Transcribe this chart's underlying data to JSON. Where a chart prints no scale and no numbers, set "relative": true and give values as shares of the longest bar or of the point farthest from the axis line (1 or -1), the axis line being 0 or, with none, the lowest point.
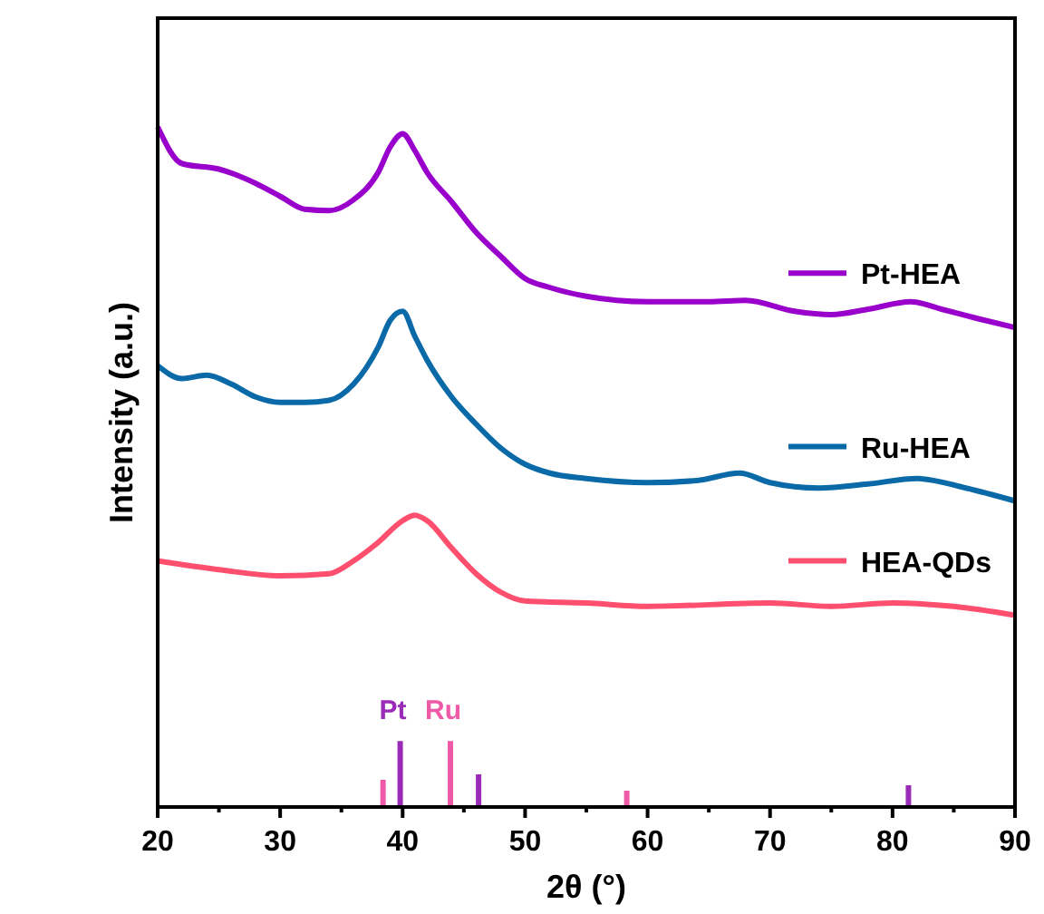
{
  "chart_data": {
    "type": "line",
    "relative": true,
    "xlabel": "2θ (°)",
    "ylabel": "Intensity (a.u.)",
    "xlim": [
      20,
      90
    ],
    "xticks": [
      20,
      {
        "value": 25,
        "label": null
      },
      30,
      {
        "value": 35,
        "label": null
      },
      40,
      {
        "value": 45,
        "label": null
      },
      50,
      {
        "value": 55,
        "label": null
      },
      60,
      {
        "value": 65,
        "label": null
      },
      70,
      {
        "value": 75,
        "label": null
      },
      80,
      {
        "value": 85,
        "label": null
      },
      90
    ],
    "grid": false,
    "legend": "right",
    "marker": "none",
    "line_style": "solid",
    "series": [
      {
        "name": "Pt-HEA",
        "color": "#9900cc",
        "x": [
          20,
          22,
          25,
          28,
          30,
          32,
          34,
          36,
          38,
          39,
          40,
          41,
          42,
          44,
          46,
          48,
          50,
          52,
          55,
          60,
          65,
          68,
          72,
          75,
          78,
          81.5,
          84,
          87,
          90
        ],
        "values": [
          1.0,
          0.946,
          0.938,
          0.917,
          0.898,
          0.879,
          0.877,
          0.893,
          0.933,
          0.971,
          0.99,
          0.965,
          0.933,
          0.89,
          0.845,
          0.81,
          0.777,
          0.764,
          0.751,
          0.743,
          0.743,
          0.745,
          0.729,
          0.724,
          0.732,
          0.743,
          0.732,
          0.718,
          0.705
        ]
      },
      {
        "name": "Ru-HEA",
        "color": "#0a6aa8",
        "x": [
          20,
          22,
          24,
          26,
          28,
          30,
          32,
          34,
          36,
          38,
          39,
          40,
          41,
          42,
          44,
          46,
          48,
          50,
          52,
          55,
          60,
          64,
          67.5,
          70,
          74,
          78,
          82,
          86,
          90
        ],
        "values": [
          0.649,
          0.63,
          0.635,
          0.622,
          0.603,
          0.595,
          0.595,
          0.598,
          0.622,
          0.676,
          0.716,
          0.729,
          0.692,
          0.657,
          0.603,
          0.563,
          0.528,
          0.504,
          0.491,
          0.483,
          0.477,
          0.48,
          0.491,
          0.477,
          0.469,
          0.475,
          0.483,
          0.469,
          0.45
        ]
      },
      {
        "name": "HEA-QDs",
        "color": "#ff4f6e",
        "x": [
          20,
          25,
          30,
          34,
          36,
          38,
          40,
          41,
          42,
          44,
          46,
          48,
          50,
          55,
          60,
          70,
          75,
          80,
          85,
          90
        ],
        "values": [
          0.362,
          0.349,
          0.34,
          0.343,
          0.362,
          0.389,
          0.421,
          0.429,
          0.421,
          0.381,
          0.343,
          0.316,
          0.303,
          0.3,
          0.295,
          0.3,
          0.295,
          0.3,
          0.295,
          0.282
        ]
      },
      {
        "name": "Pt",
        "type": "bar",
        "color": "#9a2bb8",
        "x": [
          39.8,
          46.2,
          81.3
        ],
        "values": [
          0.097,
          0.048,
          0.032
        ]
      },
      {
        "name": "Ru",
        "type": "bar",
        "color": "#ef5aa8",
        "x": [
          38.4,
          43.9,
          58.3
        ],
        "values": [
          0.04,
          0.097,
          0.024
        ]
      }
    ]
  }
}
